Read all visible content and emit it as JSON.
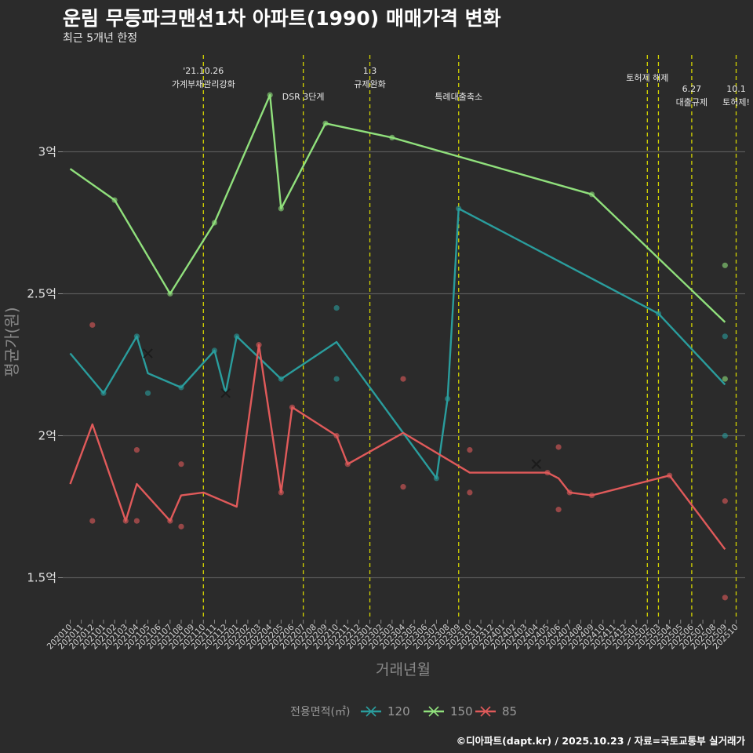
{
  "title": "운림 무등파크맨션1차 아파트(1990) 매매가격 변화",
  "subtitle": "최근 5개년 한정",
  "caption": "©디아파트(dapt.kr) / 2025.10.23 / 자료=국토교통부 실거래가",
  "chart_data": {
    "type": "line",
    "xlabel": "거래년월",
    "ylabel": "평균가(원)",
    "legend_title": "전용면적(㎡)",
    "legend_position": "bottom",
    "y_unit": "억",
    "ylim": [
      1.34,
      3.34
    ],
    "yticks": [
      {
        "value": 1.5,
        "label": "1.5억"
      },
      {
        "value": 2.0,
        "label": "2억"
      },
      {
        "value": 2.5,
        "label": "2.5억"
      },
      {
        "value": 3.0,
        "label": "3억"
      }
    ],
    "x_months": [
      "202010",
      "202011",
      "202012",
      "202101",
      "202102",
      "202103",
      "202104",
      "202105",
      "202106",
      "202107",
      "202108",
      "202109",
      "202110",
      "202111",
      "202112",
      "202201",
      "202202",
      "202203",
      "202204",
      "202205",
      "202206",
      "202207",
      "202208",
      "202209",
      "202210",
      "202211",
      "202212",
      "202301",
      "202302",
      "202303",
      "202304",
      "202305",
      "202306",
      "202307",
      "202308",
      "202309",
      "202310",
      "202311",
      "202312",
      "202401",
      "202402",
      "202403",
      "202404",
      "202405",
      "202406",
      "202407",
      "202408",
      "202409",
      "202410",
      "202411",
      "202412",
      "202501",
      "202502",
      "202503",
      "202504",
      "202505",
      "202506",
      "202507",
      "202508",
      "202509",
      "202510"
    ],
    "annotations": [
      {
        "month": "202110",
        "lines": [
          "'21.10.26",
          "가계부채관리강화"
        ]
      },
      {
        "month": "202207",
        "lines": [
          "DSR 3단계"
        ]
      },
      {
        "month": "202301",
        "lines": [
          "1.3",
          "규제완화"
        ]
      },
      {
        "month": "202309",
        "lines": [
          "특례대출축소"
        ]
      },
      {
        "month": "202502",
        "lines": [
          "토허제 해제"
        ]
      },
      {
        "month": "202503",
        "lines": []
      },
      {
        "month": "202506",
        "lines": [
          "6.27",
          "대출규제"
        ]
      },
      {
        "month": "202510",
        "lines": [
          "10.1",
          "토허제!"
        ]
      }
    ],
    "series": [
      {
        "name": "120",
        "color": "#2a9d9d",
        "line": [
          [
            "202010",
            2.29
          ],
          [
            "202101",
            2.15
          ],
          [
            "202104",
            2.35
          ],
          [
            "202105",
            2.22
          ],
          [
            "202108",
            2.17
          ],
          [
            "202111",
            2.3
          ],
          [
            "202112",
            2.15
          ],
          [
            "202201",
            2.35
          ],
          [
            "202205",
            2.2
          ],
          [
            "202210",
            2.33
          ],
          [
            "202304",
            2.01
          ],
          [
            "202307",
            1.85
          ],
          [
            "202308",
            2.13
          ],
          [
            "202309",
            2.8
          ],
          [
            "202503",
            2.43
          ],
          [
            "202509",
            2.18
          ]
        ],
        "points": [
          [
            "202101",
            2.15
          ],
          [
            "202104",
            2.35
          ],
          [
            "202105",
            2.15
          ],
          [
            "202108",
            2.17
          ],
          [
            "202111",
            2.3
          ],
          [
            "202201",
            2.35
          ],
          [
            "202205",
            2.2
          ],
          [
            "202210",
            2.45
          ],
          [
            "202210",
            2.2
          ],
          [
            "202307",
            1.85
          ],
          [
            "202308",
            2.13
          ],
          [
            "202309",
            2.8
          ],
          [
            "202503",
            2.43
          ],
          [
            "202509",
            2.35
          ],
          [
            "202509",
            2.0
          ]
        ],
        "cross": [
          [
            "202105",
            2.29
          ],
          [
            "202112",
            2.15
          ],
          [
            "202404",
            1.9
          ]
        ]
      },
      {
        "name": "150",
        "color": "#90e07c",
        "line": [
          [
            "202010",
            2.94
          ],
          [
            "202102",
            2.83
          ],
          [
            "202107",
            2.5
          ],
          [
            "202111",
            2.75
          ],
          [
            "202204",
            3.2
          ],
          [
            "202205",
            2.8
          ],
          [
            "202209",
            3.1
          ],
          [
            "202303",
            3.05
          ],
          [
            "202409",
            2.85
          ],
          [
            "202509",
            2.4
          ]
        ],
        "points": [
          [
            "202102",
            2.83
          ],
          [
            "202107",
            2.5
          ],
          [
            "202111",
            2.75
          ],
          [
            "202204",
            3.2
          ],
          [
            "202205",
            2.8
          ],
          [
            "202209",
            3.1
          ],
          [
            "202303",
            3.05
          ],
          [
            "202409",
            2.85
          ],
          [
            "202509",
            2.6
          ],
          [
            "202509",
            2.2
          ]
        ],
        "cross": []
      },
      {
        "name": "85",
        "color": "#e05a5a",
        "line": [
          [
            "202010",
            1.83
          ],
          [
            "202012",
            2.04
          ],
          [
            "202103",
            1.7
          ],
          [
            "202104",
            1.83
          ],
          [
            "202107",
            1.7
          ],
          [
            "202108",
            1.79
          ],
          [
            "202110",
            1.8
          ],
          [
            "202201",
            1.75
          ],
          [
            "202203",
            2.32
          ],
          [
            "202205",
            1.8
          ],
          [
            "202206",
            2.1
          ],
          [
            "202210",
            2.0
          ],
          [
            "202211",
            1.9
          ],
          [
            "202304",
            2.01
          ],
          [
            "202310",
            1.87
          ],
          [
            "202405",
            1.87
          ],
          [
            "202406",
            1.85
          ],
          [
            "202407",
            1.8
          ],
          [
            "202409",
            1.79
          ],
          [
            "202504",
            1.86
          ],
          [
            "202509",
            1.6
          ]
        ],
        "points": [
          [
            "202012",
            2.39
          ],
          [
            "202012",
            1.7
          ],
          [
            "202103",
            1.7
          ],
          [
            "202104",
            1.95
          ],
          [
            "202104",
            1.7
          ],
          [
            "202107",
            1.7
          ],
          [
            "202108",
            1.9
          ],
          [
            "202108",
            1.68
          ],
          [
            "202203",
            2.32
          ],
          [
            "202205",
            1.8
          ],
          [
            "202206",
            2.1
          ],
          [
            "202210",
            2.0
          ],
          [
            "202211",
            1.9
          ],
          [
            "202304",
            2.2
          ],
          [
            "202304",
            1.82
          ],
          [
            "202310",
            1.95
          ],
          [
            "202310",
            1.8
          ],
          [
            "202405",
            1.87
          ],
          [
            "202406",
            1.96
          ],
          [
            "202406",
            1.74
          ],
          [
            "202407",
            1.8
          ],
          [
            "202409",
            1.79
          ],
          [
            "202504",
            1.86
          ],
          [
            "202509",
            1.77
          ],
          [
            "202509",
            1.43
          ]
        ],
        "cross": [
          [
            "202404",
            1.9
          ]
        ]
      }
    ]
  }
}
